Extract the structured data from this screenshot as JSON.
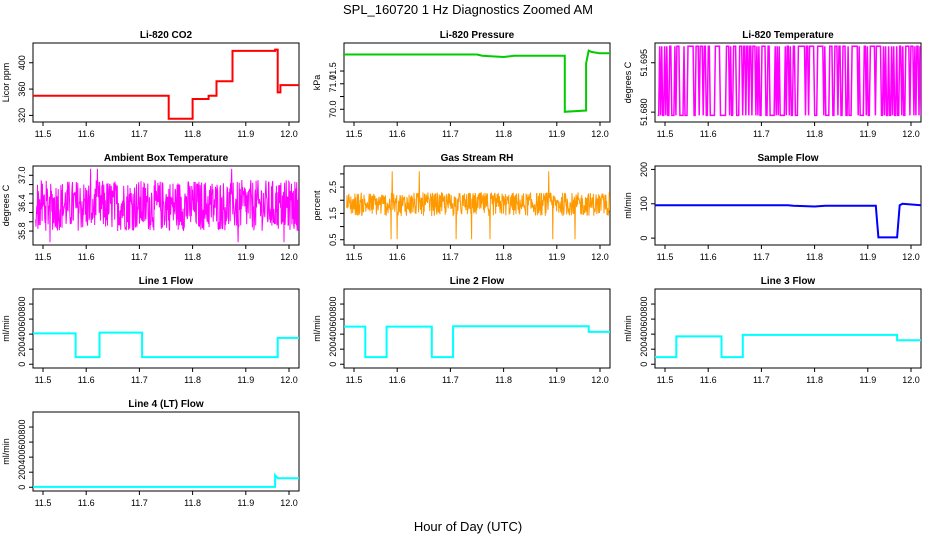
{
  "figure": {
    "title": "SPL_160720  1 Hz Diagnostics Zoomed AM",
    "xlabel": "Hour of Day (UTC)"
  },
  "chart_data": [
    {
      "type": "line",
      "title": "Li-820 CO2",
      "ylabel": "Licor ppm",
      "color": "#ff0000",
      "xlim": [
        11.5,
        12.0
      ],
      "ylim": [
        310,
        430
      ],
      "xticks": [
        "11.5",
        "11.6",
        "11.7",
        "11.8",
        "11.9",
        "12.0"
      ],
      "yticks": [
        320,
        360,
        400
      ],
      "series": [
        {
          "x": [
            11.5,
            11.755,
            11.755,
            11.8,
            11.8,
            11.83,
            11.83,
            11.845,
            11.845,
            11.875,
            11.875,
            11.955,
            11.955,
            11.96,
            11.96,
            11.965,
            11.965,
            12.0
          ],
          "y": [
            350,
            350,
            315,
            315,
            345,
            345,
            350,
            350,
            372,
            372,
            418,
            418,
            420,
            420,
            355,
            355,
            366,
            366
          ]
        }
      ]
    },
    {
      "type": "line",
      "title": "Li-820 Pressure",
      "ylabel": "kPa",
      "color": "#00cc00",
      "xlim": [
        11.5,
        12.0
      ],
      "ylim": [
        69.5,
        72.6
      ],
      "xticks": [
        "11.5",
        "11.6",
        "11.7",
        "11.8",
        "11.9",
        "12.0"
      ],
      "yticks": [
        70.0,
        70.5,
        71.0,
        71.5
      ],
      "ytick_labels": [
        "70.0",
        "",
        "71.0",
        "71.5"
      ],
      "series": [
        {
          "x": [
            11.5,
            11.75,
            11.76,
            11.8,
            11.82,
            11.905,
            11.915,
            11.915,
            11.955,
            11.955,
            11.96,
            11.965,
            11.98,
            12.0
          ],
          "y": [
            72.15,
            72.15,
            72.1,
            72.05,
            72.1,
            72.1,
            72.1,
            69.9,
            69.95,
            71.8,
            72.3,
            72.25,
            72.2,
            72.2
          ]
        }
      ]
    },
    {
      "type": "line",
      "title": "Li-820 Temperature",
      "ylabel": "degrees C",
      "color": "#ff00ff",
      "xlim": [
        11.5,
        12.0
      ],
      "ylim": [
        51.677,
        51.701
      ],
      "xticks": [
        "11.5",
        "11.6",
        "11.7",
        "11.8",
        "11.9",
        "12.0"
      ],
      "yticks": [
        51.68,
        51.695
      ],
      "ytick_labels": [
        "51.680",
        "51.695"
      ],
      "series": [
        {
          "pattern": "square-wave",
          "low": 51.679,
          "high": 51.7
        }
      ]
    },
    {
      "type": "line",
      "title": "Ambient Box Temperature",
      "ylabel": "degrees C",
      "color": "#ff00ff",
      "xlim": [
        11.5,
        12.0
      ],
      "ylim": [
        35.5,
        37.2
      ],
      "xticks": [
        "11.5",
        "11.6",
        "11.7",
        "11.8",
        "11.9",
        "12.0"
      ],
      "yticks": [
        35.8,
        36.0,
        36.2,
        36.4,
        36.6,
        36.8,
        37.0
      ],
      "ytick_labels": [
        "35.8",
        "",
        "",
        "36.4",
        "",
        "",
        "37.0"
      ],
      "series": [
        {
          "pattern": "noise",
          "min": 35.8,
          "max": 36.9
        }
      ]
    },
    {
      "type": "line",
      "title": "Gas Stream RH",
      "ylabel": "percent",
      "color": "#ff9900",
      "xlim": [
        11.5,
        12.0
      ],
      "ylim": [
        0.3,
        3.3
      ],
      "xticks": [
        "11.5",
        "11.6",
        "11.7",
        "11.8",
        "11.9",
        "12.0"
      ],
      "yticks": [
        0.5,
        1.0,
        1.5,
        2.0,
        2.5,
        3.0
      ],
      "ytick_labels": [
        "0.5",
        "",
        "1.5",
        "",
        "2.5",
        ""
      ],
      "series": [
        {
          "pattern": "noise",
          "min": 1.4,
          "max": 2.3
        }
      ]
    },
    {
      "type": "line",
      "title": "Sample Flow",
      "ylabel": "ml/min",
      "color": "#0000ff",
      "xlim": [
        11.5,
        12.0
      ],
      "ylim": [
        -20,
        210
      ],
      "xticks": [
        "11.5",
        "11.6",
        "11.7",
        "11.8",
        "11.9",
        "12.0"
      ],
      "yticks": [
        0,
        100,
        200
      ],
      "series": [
        {
          "x": [
            11.5,
            11.75,
            11.76,
            11.8,
            11.82,
            11.915,
            11.92,
            11.955,
            11.96,
            11.965,
            12.0
          ],
          "y": [
            96,
            96,
            94,
            92,
            94,
            94,
            2,
            2,
            96,
            100,
            96
          ]
        }
      ]
    },
    {
      "type": "line",
      "title": "Line 1 Flow",
      "ylabel": "ml/min",
      "color": "#00ffff",
      "xlim": [
        11.5,
        12.0
      ],
      "ylim": [
        -50,
        1000
      ],
      "xticks": [
        "11.5",
        "11.6",
        "11.7",
        "11.8",
        "11.9",
        "12.0"
      ],
      "yticks": [
        0,
        200,
        400,
        600,
        800
      ],
      "series": [
        {
          "x": [
            11.5,
            11.58,
            11.58,
            11.625,
            11.625,
            11.705,
            11.705,
            11.96,
            11.96,
            12.0
          ],
          "y": [
            410,
            410,
            95,
            95,
            420,
            420,
            95,
            95,
            350,
            350
          ]
        }
      ]
    },
    {
      "type": "line",
      "title": "Line 2 Flow",
      "ylabel": "ml/min",
      "color": "#00ffff",
      "xlim": [
        11.5,
        12.0
      ],
      "ylim": [
        -50,
        1000
      ],
      "xticks": [
        "11.5",
        "11.6",
        "11.7",
        "11.8",
        "11.9",
        "12.0"
      ],
      "yticks": [
        0,
        200,
        400,
        600,
        800
      ],
      "series": [
        {
          "x": [
            11.5,
            11.54,
            11.54,
            11.58,
            11.58,
            11.665,
            11.665,
            11.705,
            11.705,
            11.96,
            11.96,
            12.0
          ],
          "y": [
            500,
            500,
            95,
            95,
            500,
            500,
            95,
            95,
            505,
            505,
            430,
            430
          ]
        }
      ]
    },
    {
      "type": "line",
      "title": "Line 3 Flow",
      "ylabel": "ml/min",
      "color": "#00ffff",
      "xlim": [
        11.5,
        12.0
      ],
      "ylim": [
        -50,
        1000
      ],
      "xticks": [
        "11.5",
        "11.6",
        "11.7",
        "11.8",
        "11.9",
        "12.0"
      ],
      "yticks": [
        0,
        200,
        400,
        600,
        800
      ],
      "series": [
        {
          "x": [
            11.5,
            11.54,
            11.54,
            11.625,
            11.625,
            11.665,
            11.665,
            11.955,
            11.955,
            12.0
          ],
          "y": [
            95,
            95,
            370,
            370,
            95,
            95,
            390,
            390,
            320,
            320
          ]
        }
      ]
    },
    {
      "type": "line",
      "title": "Line 4 (LT) Flow",
      "ylabel": "ml/min",
      "color": "#00ffff",
      "xlim": [
        11.5,
        12.0
      ],
      "ylim": [
        -50,
        1000
      ],
      "xticks": [
        "11.5",
        "11.6",
        "11.7",
        "11.8",
        "11.9",
        "12.0"
      ],
      "yticks": [
        0,
        200,
        400,
        600,
        800
      ],
      "series": [
        {
          "x": [
            11.5,
            11.955,
            11.955,
            11.96,
            12.0
          ],
          "y": [
            5,
            5,
            160,
            120,
            120
          ]
        }
      ]
    }
  ]
}
